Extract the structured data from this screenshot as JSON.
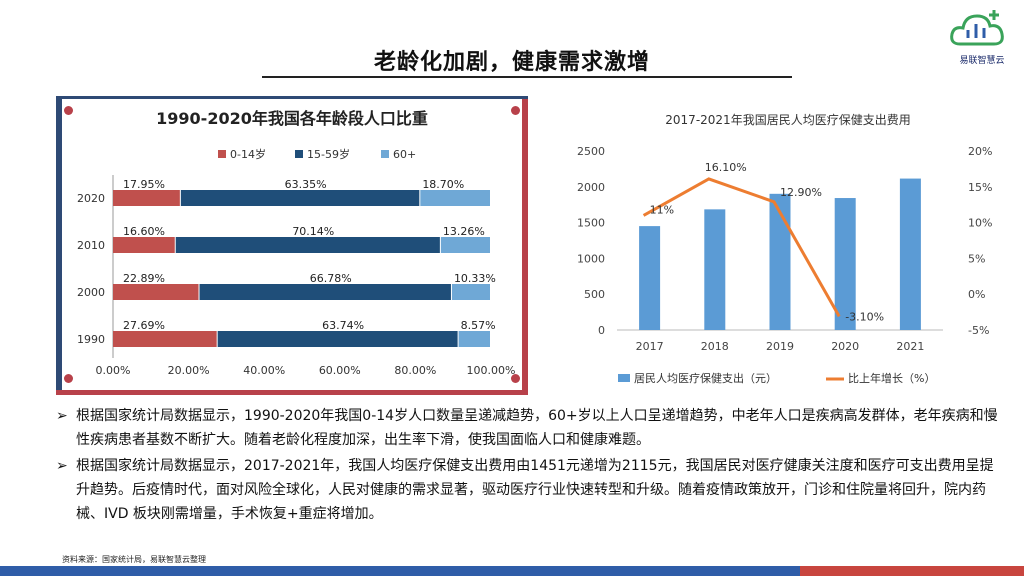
{
  "slide": {
    "title": "老龄化加剧，健康需求激增",
    "logo_text": "易联智慧云",
    "bullets": [
      "根据国家统计局数据显示，1990-2020年我国0-14岁人口数量呈递减趋势，60+岁以上人口呈递增趋势，中老年人口是疾病高发群体，老年疾病和慢性疾病患者基数不断扩大。随着老龄化程度加深，出生率下滑，使我国面临人口和健康难题。",
      "根据国家统计局数据显示，2017-2021年，我国人均医疗保健支出费用由1451元递增为2115元，我国居民对医疗健康关注度和医疗可支出费用呈提升趋势。后疫情时代，面对风险全球化，人民对健康的需求显著，驱动医疗行业快速转型和升级。随着疫情政策放开，门诊和住院量将回升，院内药械、IVD 板块刚需增量，手术恢复+重症将增加。"
    ],
    "bullet_marker": "➢",
    "source": "资料来源：国家统计局，易联智慧云整理",
    "colors": {
      "navy": "#2e4a75",
      "red": "#b8414a",
      "band_blue": "#2f5da8",
      "band_red": "#c8453e"
    }
  },
  "chart_data": [
    {
      "type": "bar",
      "orientation": "horizontal",
      "stacked": true,
      "title": "1990-2020年我国各年龄段人口比重",
      "categories": [
        "2020",
        "2010",
        "2000",
        "1990"
      ],
      "series": [
        {
          "name": "0-14岁",
          "color": "#c0504d",
          "values": [
            17.95,
            16.6,
            22.89,
            27.69
          ],
          "labels": [
            "17.95%",
            "16.60%",
            "22.89%",
            "27.69%"
          ]
        },
        {
          "name": "15-59岁",
          "color": "#1f4e79",
          "values": [
            63.35,
            70.14,
            66.78,
            63.74
          ],
          "labels": [
            "63.35%",
            "70.14%",
            "66.78%",
            "63.74%"
          ]
        },
        {
          "name": "60+",
          "color": "#6fa8d6",
          "values": [
            18.7,
            13.26,
            10.33,
            8.57
          ],
          "labels": [
            "18.70%",
            "13.26%",
            "10.33%",
            "8.57%"
          ]
        }
      ],
      "xlim": [
        0,
        100
      ],
      "xticks": [
        "0.00%",
        "20.00%",
        "40.00%",
        "60.00%",
        "80.00%",
        "100.00%"
      ],
      "legend": "top",
      "grid": false
    },
    {
      "type": "bar",
      "title": "2017-2021年我国居民人均医疗保健支出费用",
      "categories": [
        "2017",
        "2018",
        "2019",
        "2020",
        "2021"
      ],
      "series": [
        {
          "name": "居民人均医疗保健支出（元）",
          "type": "bar",
          "axis": "left",
          "color": "#5b9bd5",
          "values": [
            1451,
            1685,
            1902,
            1843,
            2115
          ]
        },
        {
          "name": "比上年增长（%）",
          "type": "line",
          "axis": "right",
          "color": "#ed7d31",
          "values": [
            11,
            16.1,
            12.9,
            -3.1,
            null
          ],
          "labels": [
            "11%",
            "16.10%",
            "12.90%",
            "-3.10%",
            ""
          ]
        }
      ],
      "ylim": [
        0,
        2500
      ],
      "yticks": [
        "0",
        "500",
        "1000",
        "1500",
        "2000",
        "2500"
      ],
      "y2lim": [
        -5,
        20
      ],
      "y2ticks": [
        "-5%",
        "0%",
        "5%",
        "10%",
        "15%",
        "20%"
      ],
      "legend": "bottom",
      "grid": false
    }
  ]
}
